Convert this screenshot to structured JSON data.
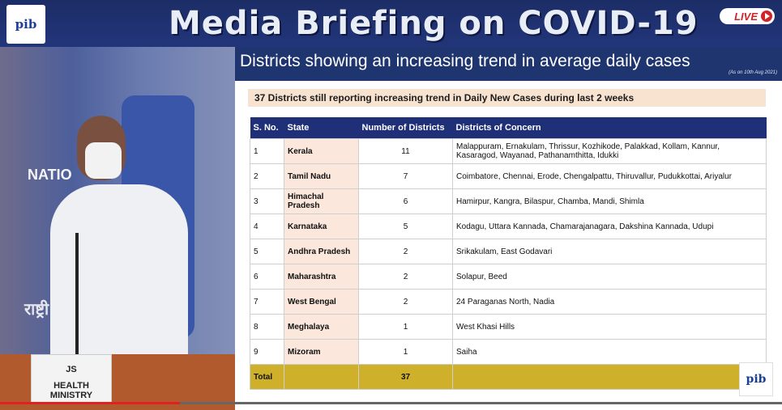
{
  "header": {
    "logo_text": "pib",
    "title": "Media Briefing on COVID-19",
    "live_label": "LIVE"
  },
  "video": {
    "wall_text": "NATIO",
    "wall_hindi": "राष्ट्री",
    "nameplate_line1": "JS",
    "nameplate_line2": "HEALTH MINISTRY",
    "progress": 0.23
  },
  "slide": {
    "title": "Districts showing an increasing trend in average daily cases",
    "date_note": "(As on 10th Aug 2021)",
    "subheading": "37 Districts still reporting increasing trend in Daily New Cases during last 2 weeks",
    "columns": [
      "S. No.",
      "State",
      "Number of Districts",
      "Districts of Concern"
    ],
    "rows": [
      {
        "sno": "1",
        "state": "Kerala",
        "count": "11",
        "districts": "Malappuram, Ernakulam, Thrissur, Kozhikode, Palakkad, Kollam, Kannur, Kasaragod, Wayanad, Pathanamthitta, Idukki"
      },
      {
        "sno": "2",
        "state": "Tamil Nadu",
        "count": "7",
        "districts": "Coimbatore, Chennai, Erode, Chengalpattu, Thiruvallur, Pudukkottai, Ariyalur"
      },
      {
        "sno": "3",
        "state": "Himachal Pradesh",
        "count": "6",
        "districts": "Hamirpur, Kangra, Bilaspur, Chamba, Mandi, Shimla"
      },
      {
        "sno": "4",
        "state": "Karnataka",
        "count": "5",
        "districts": "Kodagu, Uttara Kannada, Chamarajanagara, Dakshina Kannada, Udupi"
      },
      {
        "sno": "5",
        "state": "Andhra Pradesh",
        "count": "2",
        "districts": "Srikakulam, East Godavari"
      },
      {
        "sno": "6",
        "state": "Maharashtra",
        "count": "2",
        "districts": "Solapur, Beed"
      },
      {
        "sno": "7",
        "state": "West Bengal",
        "count": "2",
        "districts": "24 Paraganas North, Nadia"
      },
      {
        "sno": "8",
        "state": "Meghalaya",
        "count": "1",
        "districts": "West Khasi Hills"
      },
      {
        "sno": "9",
        "state": "Mizoram",
        "count": "1",
        "districts": "Saiha"
      }
    ],
    "total_label": "Total",
    "total_count": "37",
    "corner_logo": "pib"
  }
}
